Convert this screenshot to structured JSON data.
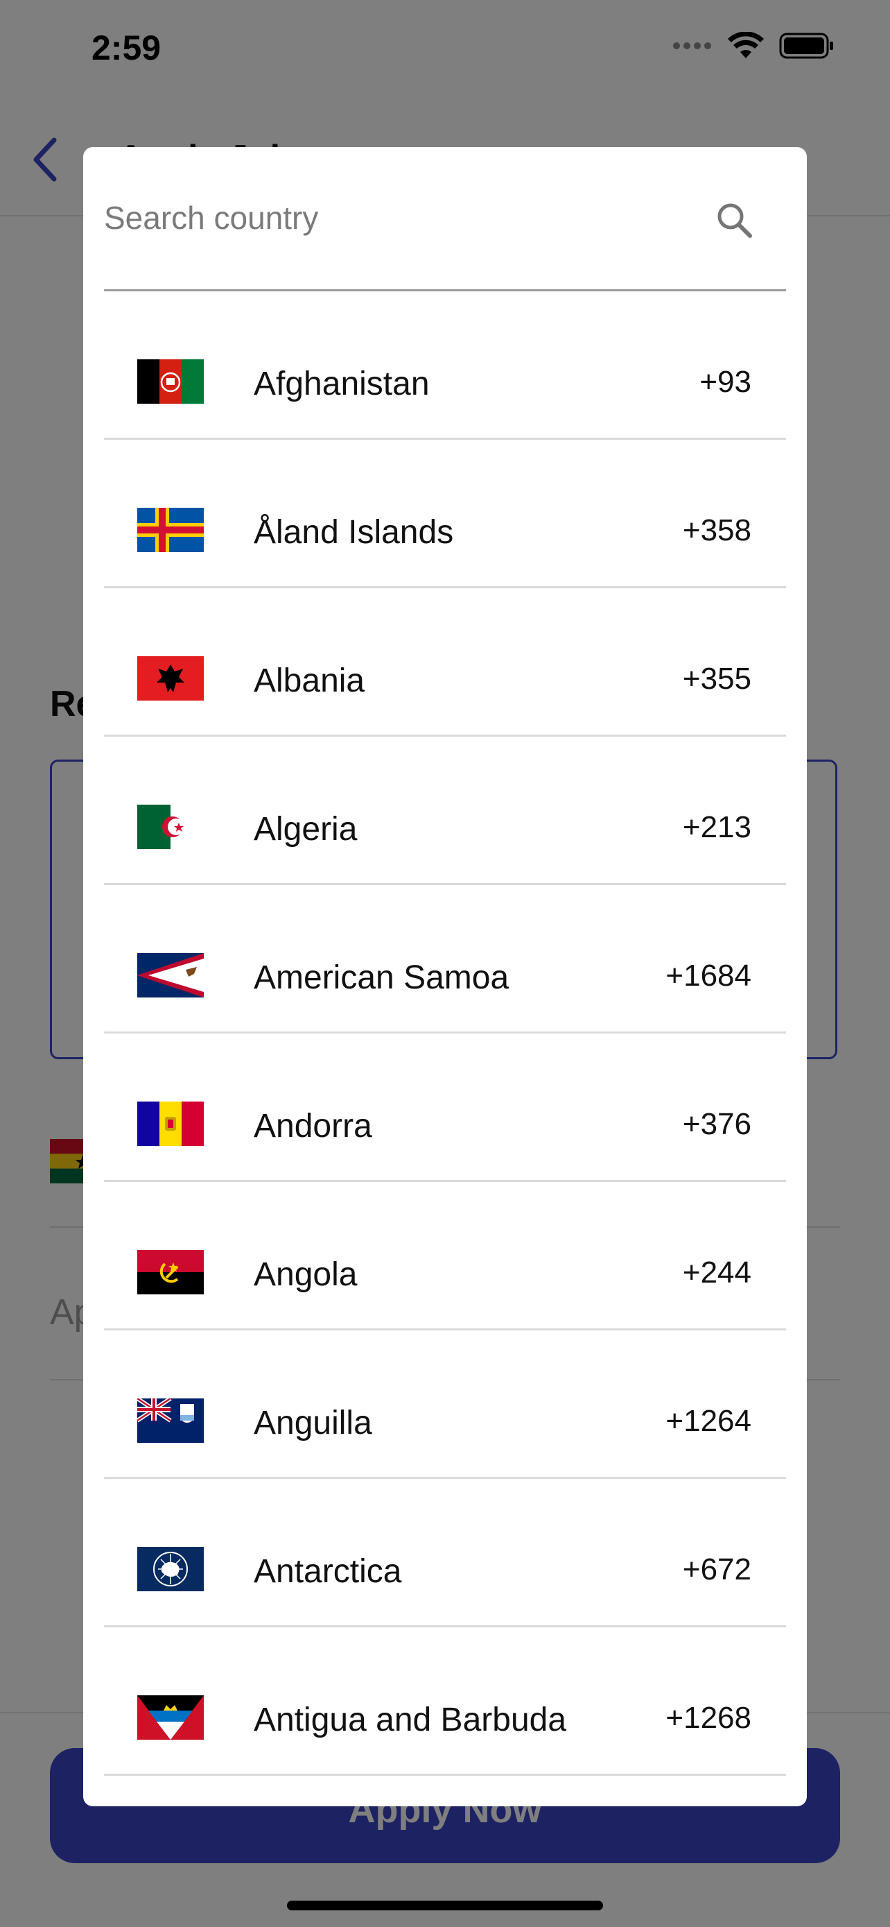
{
  "status_bar": {
    "time": "2:59"
  },
  "header": {
    "title": "Apply Job"
  },
  "form": {
    "section_label": "Re",
    "address_placeholder": "Ap",
    "apply_button_label": "Apply Now"
  },
  "country_picker": {
    "search_placeholder": "Search country",
    "countries": [
      {
        "name": "Afghanistan",
        "dial_code": "+93",
        "flag_icon": "afghanistan-flag-icon"
      },
      {
        "name": "Åland Islands",
        "dial_code": "+358",
        "flag_icon": "aland-islands-flag-icon"
      },
      {
        "name": "Albania",
        "dial_code": "+355",
        "flag_icon": "albania-flag-icon"
      },
      {
        "name": "Algeria",
        "dial_code": "+213",
        "flag_icon": "algeria-flag-icon"
      },
      {
        "name": "American Samoa",
        "dial_code": "+1684",
        "flag_icon": "american-samoa-flag-icon"
      },
      {
        "name": "Andorra",
        "dial_code": "+376",
        "flag_icon": "andorra-flag-icon"
      },
      {
        "name": "Angola",
        "dial_code": "+244",
        "flag_icon": "angola-flag-icon"
      },
      {
        "name": "Anguilla",
        "dial_code": "+1264",
        "flag_icon": "anguilla-flag-icon"
      },
      {
        "name": "Antarctica",
        "dial_code": "+672",
        "flag_icon": "antarctica-flag-icon"
      },
      {
        "name": "Antigua and Barbuda",
        "dial_code": "+1268",
        "flag_icon": "antigua-and-barbuda-flag-icon"
      }
    ]
  },
  "colors": {
    "accent": "#3a44c6",
    "scrim": "#000000",
    "divider": "#dadada"
  }
}
